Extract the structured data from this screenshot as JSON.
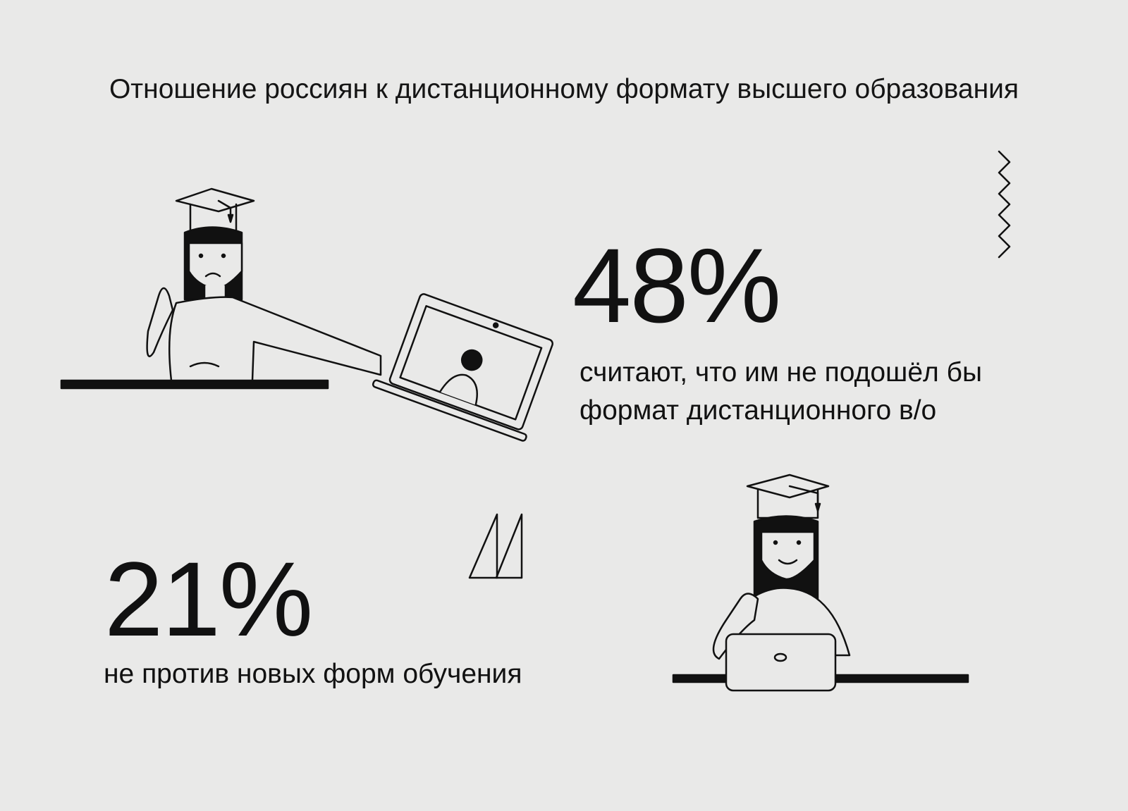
{
  "title": "Отношение россиян к дистанционному формату высшего образования",
  "stats": [
    {
      "value": "48%",
      "caption_line1": "считают, что им не подошёл бы",
      "caption_line2": "формат дистанционного в/о"
    },
    {
      "value": "21%",
      "caption_line1": "не против новых форм обучения"
    }
  ],
  "colors": {
    "background": "#e9e9e8",
    "ink": "#111111"
  },
  "illustrations": [
    "graduate-rejecting-laptop",
    "graduate-thumbs-up-laptop"
  ]
}
